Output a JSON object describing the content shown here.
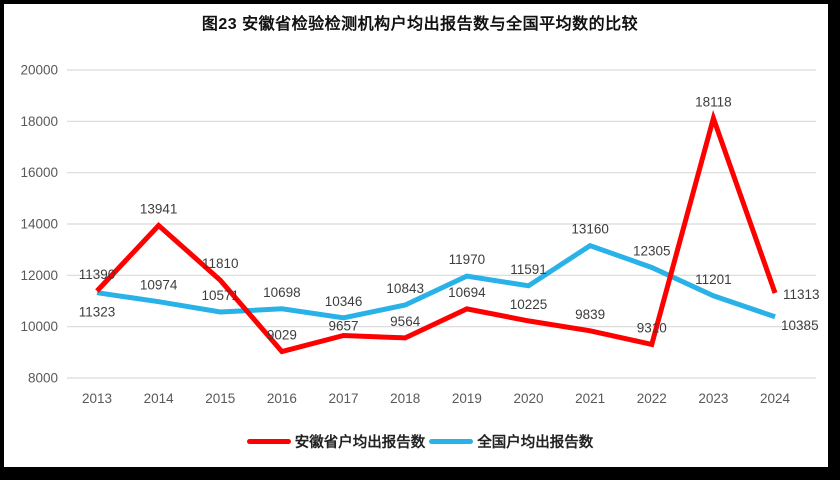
{
  "title": "图23 安徽省检验检测机构户均出报告数与全国平均数的比较",
  "chart_data": {
    "type": "line",
    "categories": [
      "2013",
      "2014",
      "2015",
      "2016",
      "2017",
      "2018",
      "2019",
      "2020",
      "2021",
      "2022",
      "2023",
      "2024"
    ],
    "series": [
      {
        "name": "安徽省户均出报告数",
        "color": "#ff0000",
        "values": [
          11390,
          13941,
          11810,
          9029,
          9657,
          9564,
          10694,
          10225,
          9839,
          9310,
          18118,
          11313
        ]
      },
      {
        "name": "全国户均出报告数",
        "color": "#29b2e8",
        "values": [
          11323,
          10974,
          10571,
          10698,
          10346,
          10843,
          11970,
          11591,
          13160,
          12305,
          11201,
          10385
        ]
      }
    ],
    "yticks": [
      20000,
      18000,
      16000,
      14000,
      12000,
      10000,
      8000
    ],
    "ylim": [
      8000,
      20000
    ],
    "grid": "horizontal",
    "legend_position": "bottom",
    "show_data_labels": true
  },
  "styles": {
    "background": "#ffffff",
    "border_color": "#000000",
    "grid_color": "#d9d9d9",
    "axis_text_color": "#595959",
    "data_label_color": "#3d3d3d",
    "series_red": "#ff0000",
    "series_blue": "#29b2e8"
  }
}
